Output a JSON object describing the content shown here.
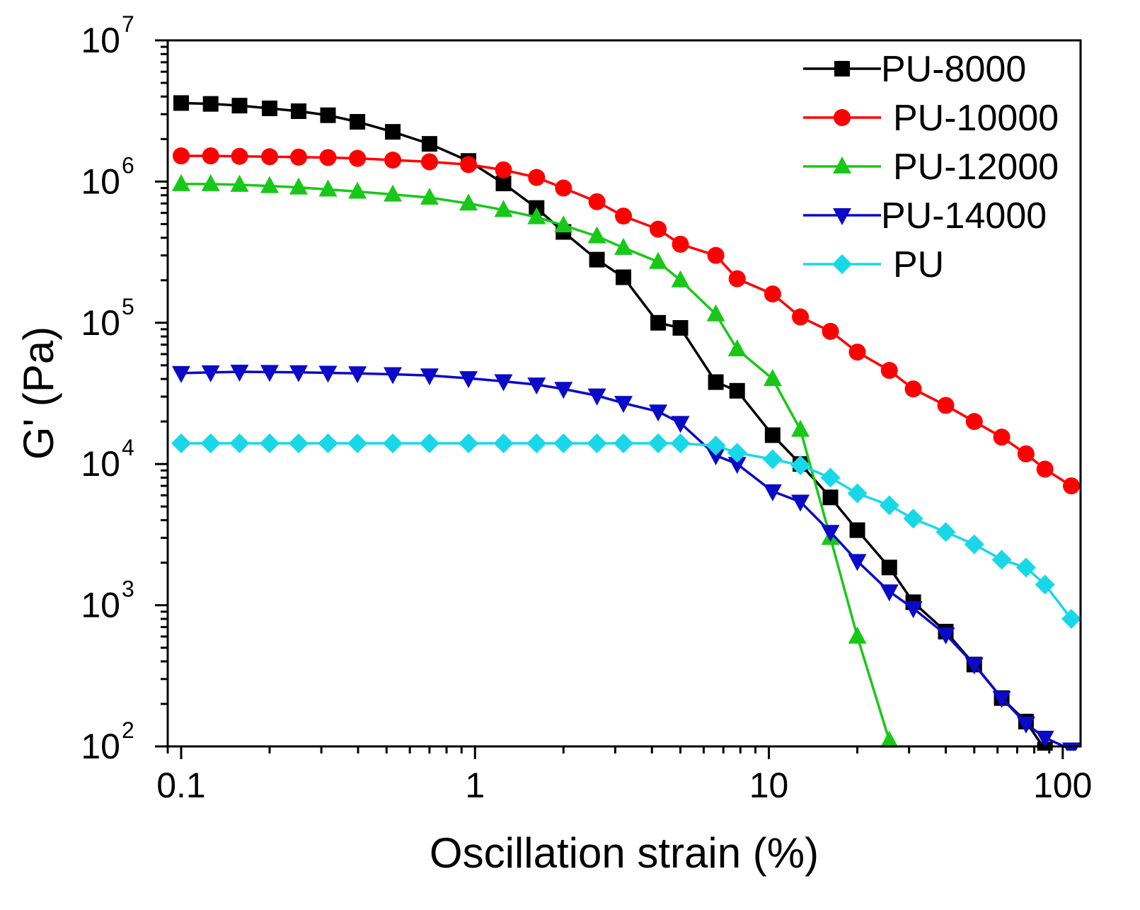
{
  "chart_data": {
    "type": "line",
    "xscale": "log",
    "yscale": "log",
    "xlabel": "Oscillation strain (%)",
    "ylabel": "G' (Pa)",
    "xlim": [
      0.09,
      115
    ],
    "ylim": [
      100,
      10000000
    ],
    "x_ticks": [
      {
        "value": 0.1,
        "label": "0.1"
      },
      {
        "value": 1,
        "label": "1"
      },
      {
        "value": 10,
        "label": "10"
      },
      {
        "value": 100,
        "label": "100"
      }
    ],
    "y_ticks": [
      {
        "value": 100,
        "base": "10",
        "exp": "2"
      },
      {
        "value": 1000,
        "base": "10",
        "exp": "3"
      },
      {
        "value": 10000,
        "base": "10",
        "exp": "4"
      },
      {
        "value": 100000,
        "base": "10",
        "exp": "5"
      },
      {
        "value": 1000000,
        "base": "10",
        "exp": "6"
      },
      {
        "value": 10000000,
        "base": "10",
        "exp": "7"
      }
    ],
    "legend_position": "top-right",
    "series": [
      {
        "name": "PU-8000",
        "color": "#000000",
        "marker": "square",
        "x": [
          0.1,
          0.126,
          0.158,
          0.2,
          0.251,
          0.316,
          0.398,
          0.525,
          0.7,
          0.95,
          1.25,
          1.62,
          2.0,
          2.6,
          3.2,
          4.2,
          5.0,
          6.6,
          7.8,
          10.3,
          12.8,
          16.2,
          20.0,
          25.7,
          31.0,
          40.0,
          50.0,
          62.0,
          75.0,
          87.0
        ],
        "y": [
          3600000,
          3550000,
          3450000,
          3300000,
          3150000,
          2950000,
          2650000,
          2250000,
          1850000,
          1400000,
          970000,
          650000,
          440000,
          280000,
          210000,
          100000,
          92000,
          38000,
          33000,
          16000,
          10000,
          5800,
          3400,
          1850,
          1050,
          650,
          380,
          220,
          150,
          95
        ]
      },
      {
        "name": "PU-10000",
        "color": "#ff0000",
        "marker": "circle",
        "x": [
          0.1,
          0.126,
          0.158,
          0.2,
          0.251,
          0.316,
          0.398,
          0.525,
          0.7,
          0.95,
          1.25,
          1.62,
          2.0,
          2.6,
          3.2,
          4.2,
          5.0,
          6.6,
          7.8,
          10.3,
          12.8,
          16.2,
          20.0,
          25.7,
          31.0,
          40.0,
          50.0,
          62.0,
          75.0,
          87.0,
          107.0
        ],
        "y": [
          1520000,
          1520000,
          1510000,
          1500000,
          1490000,
          1480000,
          1460000,
          1420000,
          1380000,
          1320000,
          1210000,
          1070000,
          900000,
          720000,
          570000,
          460000,
          360000,
          300000,
          205000,
          160000,
          110000,
          87000,
          62000,
          46000,
          34000,
          26000,
          20000,
          15500,
          11800,
          9200,
          7000
        ]
      },
      {
        "name": "PU-12000",
        "color": "#18c818",
        "marker": "triangle-up",
        "x": [
          0.1,
          0.126,
          0.158,
          0.2,
          0.251,
          0.316,
          0.398,
          0.525,
          0.7,
          0.95,
          1.25,
          1.62,
          2.0,
          2.6,
          3.2,
          4.2,
          5.0,
          6.6,
          7.8,
          10.3,
          12.8,
          16.2,
          20.0,
          25.7
        ],
        "y": [
          960000,
          960000,
          950000,
          930000,
          910000,
          880000,
          850000,
          810000,
          770000,
          700000,
          630000,
          560000,
          490000,
          410000,
          340000,
          270000,
          200000,
          115000,
          65000,
          40000,
          17500,
          3000,
          600,
          110
        ]
      },
      {
        "name": "PU-14000",
        "color": "#0a0ac8",
        "marker": "triangle-down",
        "x": [
          0.1,
          0.126,
          0.158,
          0.2,
          0.251,
          0.316,
          0.398,
          0.525,
          0.7,
          0.95,
          1.25,
          1.62,
          2.0,
          2.6,
          3.2,
          4.2,
          5.0,
          6.6,
          7.8,
          10.3,
          12.8,
          16.2,
          20.0,
          25.7,
          31.0,
          40.0,
          50.0,
          62.0,
          75.0,
          87.0,
          107.0
        ],
        "y": [
          44000,
          44500,
          45000,
          44800,
          44600,
          44200,
          43800,
          43200,
          42300,
          40500,
          38500,
          36500,
          34000,
          30500,
          27000,
          23500,
          19500,
          11500,
          10000,
          6400,
          5400,
          3300,
          2050,
          1250,
          950,
          620,
          380,
          220,
          145,
          115,
          95
        ]
      },
      {
        "name": "PU",
        "color": "#18d8e8",
        "marker": "diamond",
        "x": [
          0.1,
          0.126,
          0.158,
          0.2,
          0.251,
          0.316,
          0.398,
          0.525,
          0.7,
          0.95,
          1.25,
          1.62,
          2.0,
          2.6,
          3.2,
          4.2,
          5.0,
          6.6,
          7.8,
          10.3,
          12.8,
          16.2,
          20.0,
          25.7,
          31.0,
          40.0,
          50.0,
          62.0,
          75.0,
          87.0,
          107.0
        ],
        "y": [
          14000,
          14000,
          14000,
          14000,
          14000,
          14000,
          14000,
          14000,
          14000,
          14000,
          14000,
          14000,
          14000,
          14000,
          14000,
          14000,
          14000,
          13500,
          12000,
          10800,
          9800,
          8000,
          6200,
          5100,
          4100,
          3300,
          2700,
          2100,
          1850,
          1400,
          800
        ]
      }
    ]
  }
}
